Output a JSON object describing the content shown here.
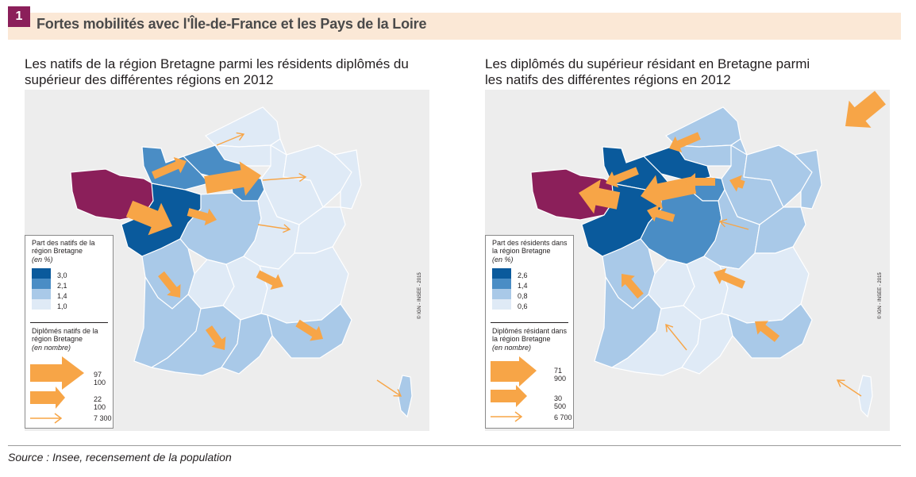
{
  "figure": {
    "number": "1",
    "title": "Fortes mobilités avec l'Île-de-France et les Pays de la Loire"
  },
  "colors": {
    "bretagne": "#8b1f5a",
    "class_4": "#0a5a9c",
    "class_3": "#4a8dc5",
    "class_2": "#a9c9e8",
    "class_1": "#dfeaf6",
    "background": "#ededed",
    "arrow": "#f7a547",
    "header": "#fbe8d6"
  },
  "left_map": {
    "subtitle": "Les natifs de la région Bretagne parmi les résidents diplômés du supérieur des différentes régions en 2012",
    "legend": {
      "share_title": "Part des natifs de la région Bretagne",
      "share_unit": "(en %)",
      "thresholds": [
        "3,0",
        "2,1",
        "1,4",
        "1,0"
      ],
      "flow_title": "Diplômés natifs de la région Bretagne",
      "flow_unit": "(en nombre)",
      "flows": [
        "97 100",
        "22 100",
        "7 300"
      ]
    },
    "credit": "© IGN - INSEE - 2015",
    "regions": {
      "bretagne": "bretagne",
      "pays_de_la_loire": "class_4",
      "basse_normandie": "class_3",
      "haute_normandie": "class_3",
      "ile_de_france": "class_3",
      "centre": "class_2",
      "poitou_charentes": "class_2",
      "aquitaine": "class_2",
      "midi_pyrenees": "class_2",
      "languedoc_roussillon": "class_2",
      "paca": "class_2",
      "corse": "class_2",
      "nord": "class_1",
      "picardie": "class_1",
      "champagne": "class_1",
      "lorraine": "class_1",
      "alsace": "class_1",
      "bourgogne": "class_1",
      "franche_comte": "class_1",
      "limousin": "class_1",
      "auvergne": "class_1",
      "rhone_alpes": "class_1"
    }
  },
  "right_map": {
    "subtitle": "Les diplômés du supérieur résidant en Bretagne parmi les natifs des différentes régions en 2012",
    "legend": {
      "share_title": "Part des résidents dans la région Bretagne",
      "share_unit": "(en %)",
      "thresholds": [
        "2,6",
        "1,4",
        "0,8",
        "0,6"
      ],
      "flow_title": "Diplômés résidant dans la région Bretagne",
      "flow_unit": "(en nombre)",
      "flows": [
        "71 900",
        "30 500",
        "6 700"
      ]
    },
    "credit": "© IGN - INSEE - 2015",
    "regions": {
      "bretagne": "bretagne",
      "pays_de_la_loire": "class_4",
      "basse_normandie": "class_4",
      "haute_normandie": "class_4",
      "ile_de_france": "class_3",
      "centre": "class_3",
      "poitou_charentes": "class_2",
      "aquitaine": "class_2",
      "midi_pyrenees": "class_1",
      "languedoc_roussillon": "class_1",
      "paca": "class_2",
      "corse": "class_1",
      "nord": "class_2",
      "picardie": "class_2",
      "champagne": "class_2",
      "lorraine": "class_2",
      "alsace": "class_2",
      "bourgogne": "class_2",
      "franche_comte": "class_2",
      "limousin": "class_1",
      "auvergne": "class_1",
      "rhone_alpes": "class_1"
    }
  },
  "source": "Source :  Insee, recensement de la population"
}
